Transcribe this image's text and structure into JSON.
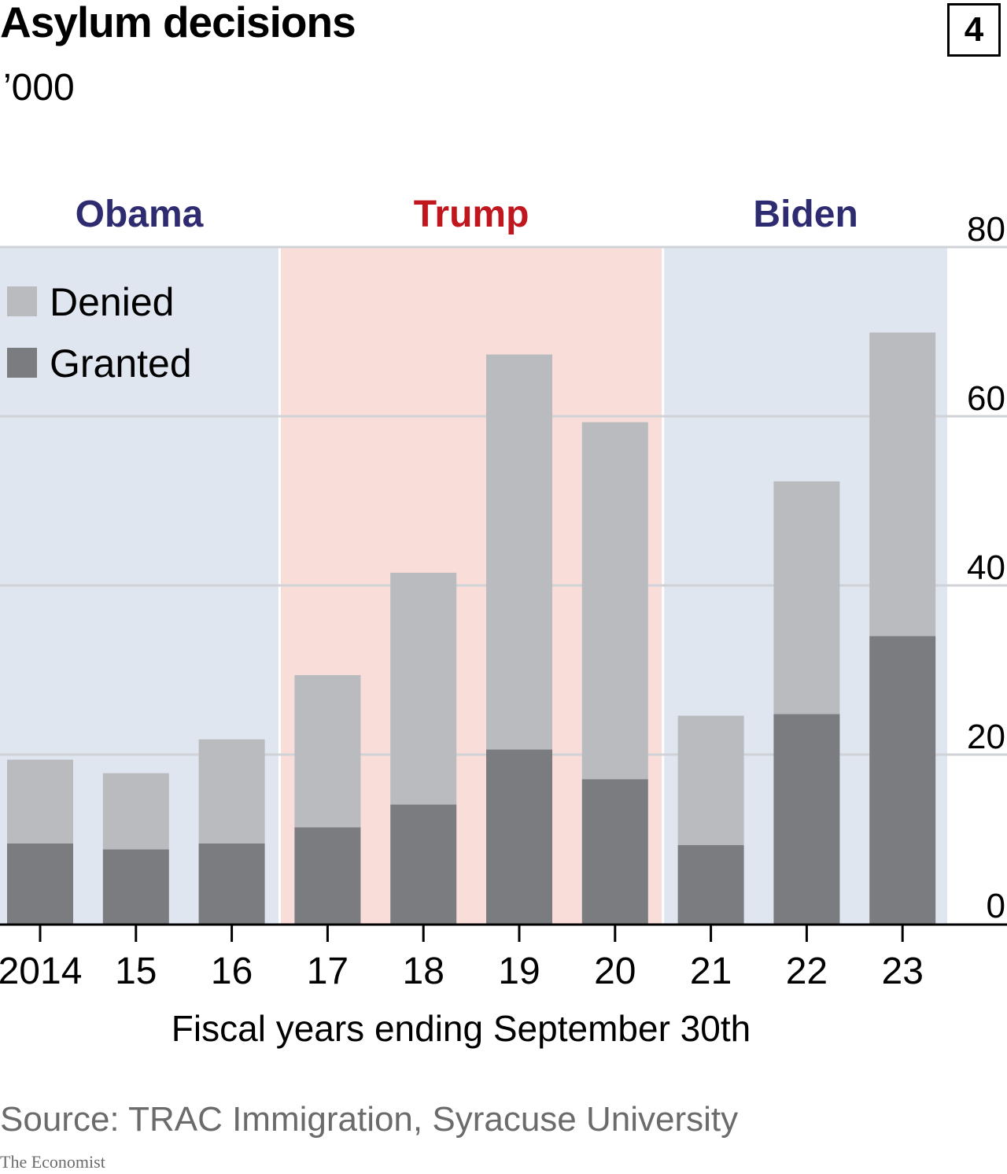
{
  "header": {
    "title": "Asylum decisions",
    "subtitle": "’000",
    "chart_number": "4"
  },
  "footer": {
    "source": "Source: TRAC Immigration, Syracuse University",
    "brand": "The Economist"
  },
  "colors": {
    "denied": "#b9bbbe",
    "granted": "#7a7c80",
    "obama_band": "#e0e6ef",
    "trump_band": "#f9ddd9",
    "biden_band": "#e0e6ef",
    "democrat_label": "#2e2b70",
    "republican_label": "#c0161d"
  },
  "chart_data": {
    "type": "bar",
    "stacked": true,
    "title": "Asylum decisions",
    "subtitle": "’000",
    "xlabel": "Fiscal years ending September 30th",
    "ylabel": "",
    "ylim": [
      0,
      80
    ],
    "yticks": [
      0,
      20,
      40,
      60,
      80
    ],
    "grid": true,
    "legend": "top-left",
    "categories": [
      "2014",
      "15",
      "16",
      "17",
      "18",
      "19",
      "20",
      "21",
      "22",
      "23"
    ],
    "series": [
      {
        "name": "Granted",
        "values": [
          9.5,
          8.8,
          9.5,
          11.4,
          14.1,
          20.6,
          17.1,
          9.3,
          24.8,
          34.0
        ]
      },
      {
        "name": "Denied",
        "values": [
          9.9,
          9.0,
          12.3,
          18.0,
          27.4,
          46.7,
          42.2,
          15.3,
          27.5,
          35.9
        ]
      }
    ],
    "periods": [
      {
        "label": "Obama",
        "first": 0,
        "last": 2,
        "party": "democrat"
      },
      {
        "label": "Trump",
        "first": 3,
        "last": 6,
        "party": "republican"
      },
      {
        "label": "Biden",
        "first": 7,
        "last": 9,
        "party": "democrat"
      }
    ]
  }
}
